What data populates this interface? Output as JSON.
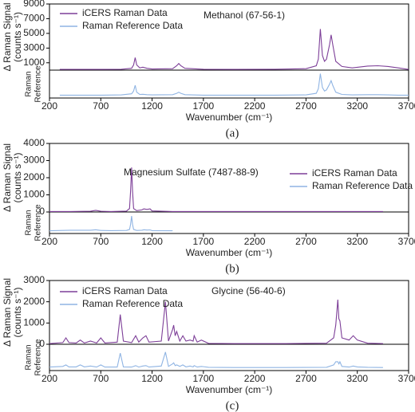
{
  "chart_data": [
    {
      "type": "line",
      "title": "Methanol (67-56-1)",
      "caption": "(a)",
      "legend": "upper left",
      "xlabel": "Wavenumber (cm⁻¹)",
      "ylabel": [
        "Δ Raman Signal",
        "(counts s⁻¹)"
      ],
      "y2label": [
        "Raman",
        "Reference"
      ],
      "xlim": [
        200,
        3700
      ],
      "xticks": [
        200,
        700,
        1200,
        1700,
        2200,
        2700,
        3200,
        3700
      ],
      "ylim": [
        0,
        9000
      ],
      "yticks": [
        1000,
        3000,
        5000,
        7000,
        9000
      ],
      "y2lim": [
        0,
        1
      ],
      "x": [
        300,
        500,
        700,
        900,
        1000,
        1020,
        1035,
        1050,
        1080,
        1110,
        1150,
        1200,
        1400,
        1440,
        1460,
        1480,
        1520,
        1700,
        2000,
        2400,
        2700,
        2800,
        2820,
        2840,
        2860,
        2880,
        2900,
        2930,
        2945,
        2960,
        2990,
        3050,
        3150,
        3300,
        3400,
        3500,
        3600,
        3700
      ],
      "series": [
        {
          "name": "iCERS Raman Data",
          "color": "#7d3f98",
          "values": [
            100,
            100,
            100,
            120,
            250,
            700,
            1700,
            700,
            300,
            400,
            250,
            150,
            200,
            600,
            900,
            600,
            250,
            120,
            100,
            120,
            200,
            600,
            1500,
            5600,
            2000,
            1200,
            1500,
            3500,
            4800,
            3500,
            1200,
            500,
            300,
            550,
            600,
            500,
            300,
            100
          ]
        },
        {
          "name": "Raman Reference Data",
          "color": "#8fb4e3",
          "axis": "y2",
          "values": [
            0.02,
            0.02,
            0.02,
            0.03,
            0.08,
            0.2,
            0.45,
            0.15,
            0.05,
            0.06,
            0.04,
            0.03,
            0.04,
            0.1,
            0.15,
            0.1,
            0.04,
            0.02,
            0.02,
            0.02,
            0.03,
            0.1,
            0.3,
            0.95,
            0.35,
            0.2,
            0.25,
            0.5,
            0.65,
            0.45,
            0.15,
            0.05,
            0.03,
            0.04,
            0.04,
            0.03,
            0.02,
            0.02
          ]
        }
      ]
    },
    {
      "type": "line",
      "title": "Magnesium Sulfate (7487-88-9)",
      "caption": "(b)",
      "legend": "right",
      "xlabel": "Wavenumber (cm⁻¹)",
      "ylabel": [
        "Δ Raman Signal",
        "(counts s⁻¹)"
      ],
      "y2label": [
        "Raman",
        "Reference"
      ],
      "xlim": [
        200,
        3700
      ],
      "xticks": [
        200,
        700,
        1200,
        1700,
        2200,
        2700,
        3200,
        3700
      ],
      "ylim": [
        0,
        4000
      ],
      "yticks": [
        0,
        1000,
        2000,
        3000,
        4000
      ],
      "y2lim": [
        0,
        1
      ],
      "x": [
        200,
        400,
        600,
        650,
        700,
        800,
        950,
        980,
        990,
        1000,
        1010,
        1020,
        1050,
        1100,
        1120,
        1150,
        1180,
        1200,
        1400,
        1700,
        2200,
        2700,
        3200,
        3450
      ],
      "series": [
        {
          "name": "iCERS Raman Data",
          "color": "#7d3f98",
          "values": [
            30,
            30,
            40,
            100,
            40,
            30,
            50,
            200,
            1200,
            2600,
            1200,
            200,
            80,
            120,
            180,
            150,
            180,
            60,
            30,
            30,
            30,
            30,
            30,
            30
          ]
        },
        {
          "name": "Raman Reference Data",
          "color": "#8fb4e3",
          "axis": "y2",
          "values": [
            0.02,
            0.05,
            0.05,
            0.08,
            0.04,
            0.03,
            0.04,
            0.1,
            0.4,
            0.9,
            0.4,
            0.1,
            0.04,
            0.05,
            0.08,
            0.06,
            0.07,
            0.03,
            0.02,
            null,
            null,
            null,
            null,
            null
          ]
        }
      ]
    },
    {
      "type": "line",
      "title": "Glycine (56-40-6)",
      "caption": "(c)",
      "legend": "upper left",
      "xlabel": "Wavenumber (cm⁻¹)",
      "ylabel": [
        "Δ Raman Signal",
        "(counts s⁻¹)"
      ],
      "y2label": [
        "Raman",
        "Reference"
      ],
      "xlim": [
        200,
        3700
      ],
      "xticks": [
        200,
        700,
        1200,
        1700,
        2200,
        2700,
        3200,
        3700
      ],
      "ylim": [
        0,
        3000
      ],
      "yticks": [
        0,
        1000,
        2000,
        3000
      ],
      "y2lim": [
        0,
        1
      ],
      "x": [
        200,
        330,
        360,
        390,
        460,
        500,
        540,
        600,
        660,
        700,
        740,
        860,
        890,
        920,
        1000,
        1040,
        1070,
        1110,
        1140,
        1170,
        1290,
        1330,
        1360,
        1400,
        1410,
        1425,
        1440,
        1470,
        1500,
        1530,
        1570,
        1600,
        1610,
        1640,
        1680,
        1750,
        2000,
        2500,
        2900,
        2970,
        2990,
        3010,
        3020,
        3030,
        3050,
        3120,
        3160,
        3200,
        3300,
        3450
      ],
      "series": [
        {
          "name": "iCERS Raman Data",
          "color": "#7d3f98",
          "values": [
            30,
            80,
            300,
            80,
            60,
            200,
            60,
            150,
            60,
            300,
            60,
            100,
            1400,
            150,
            80,
            400,
            100,
            300,
            400,
            100,
            150,
            2000,
            150,
            700,
            900,
            400,
            600,
            150,
            400,
            150,
            200,
            150,
            400,
            100,
            200,
            40,
            30,
            30,
            50,
            300,
            900,
            2100,
            1200,
            1100,
            300,
            200,
            400,
            200,
            50,
            30
          ]
        },
        {
          "name": "Raman Reference Data",
          "color": "#8fb4e3",
          "axis": "y2",
          "values": [
            0.05,
            0.08,
            0.15,
            0.06,
            0.06,
            0.15,
            0.06,
            0.1,
            0.05,
            0.15,
            0.05,
            0.05,
            0.7,
            0.06,
            0.05,
            0.12,
            0.05,
            0.1,
            0.12,
            0.05,
            0.1,
            0.75,
            0.08,
            0.2,
            0.25,
            0.12,
            0.15,
            0.08,
            0.15,
            0.06,
            0.1,
            0.06,
            0.12,
            0.05,
            0.08,
            0.04,
            0.03,
            0.03,
            0.04,
            0.15,
            0.3,
            0.3,
            0.2,
            0.3,
            0.08,
            0.05,
            0.1,
            0.06,
            0.04,
            0.03
          ]
        }
      ]
    }
  ]
}
